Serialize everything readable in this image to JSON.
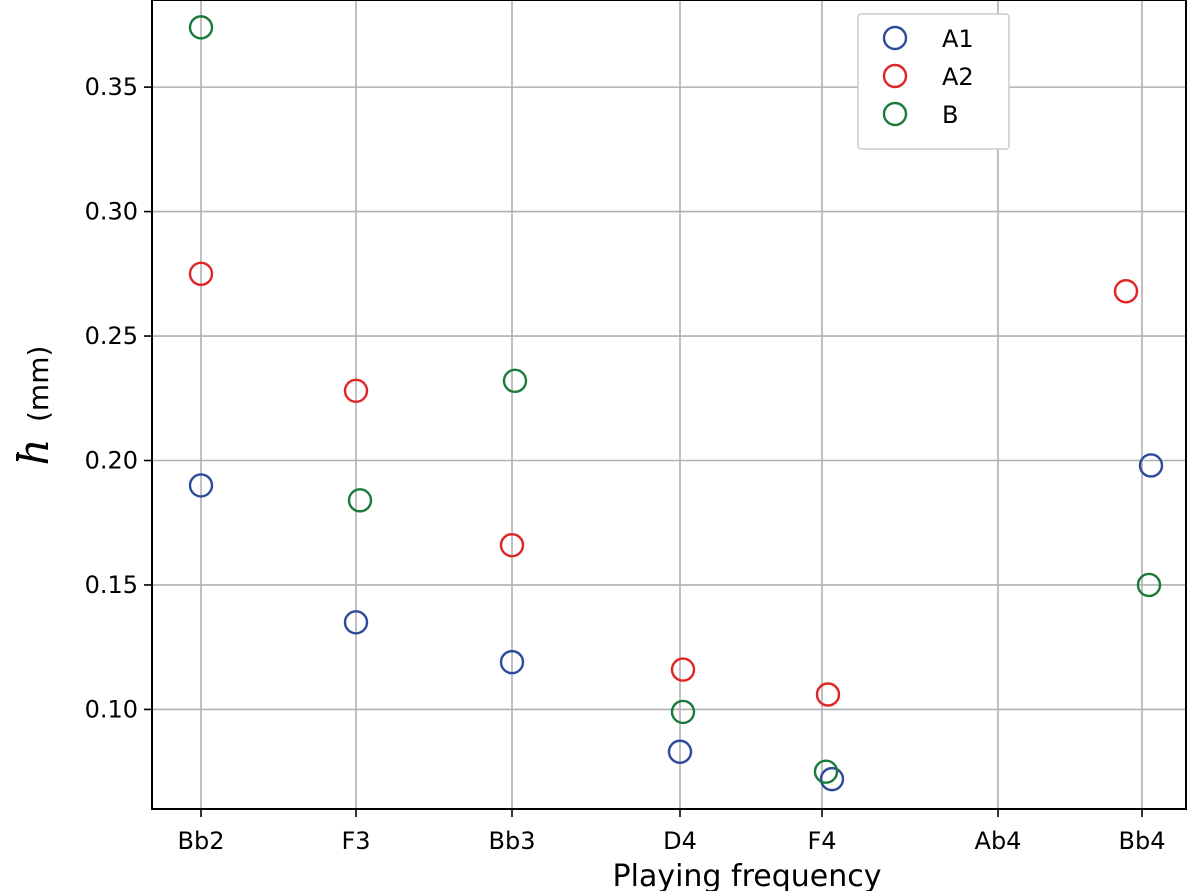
{
  "chart_data": {
    "type": "scatter",
    "xlabel": "Playing frequency",
    "ylabel_symbol": "h",
    "ylabel_unit": "(mm)",
    "categories": [
      "Bb2",
      "F3",
      "Bb3",
      "D4",
      "F4",
      "Ab4",
      "Bb4"
    ],
    "yticks": [
      "0.10",
      "0.15",
      "0.20",
      "0.25",
      "0.30",
      "0.35"
    ],
    "ylim": [
      0.06,
      0.385
    ],
    "grid": true,
    "legend_position": "top-right",
    "series": [
      {
        "name": "A1",
        "color": "#2e4a9a",
        "points": [
          {
            "x": "Bb2",
            "y": 0.19
          },
          {
            "x": "F3",
            "y": 0.135
          },
          {
            "x": "Bb3",
            "y": 0.119
          },
          {
            "x": "D4",
            "y": 0.083
          },
          {
            "x": "F4",
            "y": 0.072
          },
          {
            "x": "Bb4",
            "y": 0.198
          }
        ]
      },
      {
        "name": "A2",
        "color": "#e02424",
        "points": [
          {
            "x": "Bb2",
            "y": 0.275
          },
          {
            "x": "F3",
            "y": 0.228
          },
          {
            "x": "Bb3",
            "y": 0.166
          },
          {
            "x": "D4",
            "y": 0.116
          },
          {
            "x": "F4",
            "y": 0.106
          },
          {
            "x": "Bb4",
            "y": 0.268
          }
        ]
      },
      {
        "name": "B",
        "color": "#1a7a3a",
        "points": [
          {
            "x": "Bb2",
            "y": 0.374
          },
          {
            "x": "F3",
            "y": 0.184
          },
          {
            "x": "Bb3",
            "y": 0.232
          },
          {
            "x": "D4",
            "y": 0.099
          },
          {
            "x": "F4",
            "y": 0.075
          },
          {
            "x": "Bb4",
            "y": 0.15
          }
        ]
      }
    ]
  }
}
